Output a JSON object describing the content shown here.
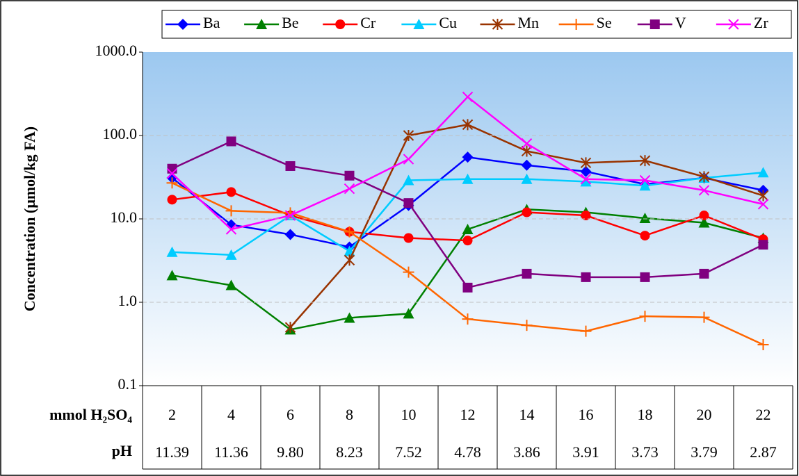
{
  "chart_data": {
    "type": "line",
    "y_label": "Concentration (μmol/kg FA)",
    "x_label": "mmol H₂SO₄",
    "row2_label": "pH",
    "row2": [
      "11.39",
      "11.36",
      "9.80",
      "8.23",
      "7.52",
      "4.78",
      "3.86",
      "3.91",
      "3.73",
      "3.79",
      "2.87"
    ],
    "categories": [
      "2",
      "4",
      "6",
      "8",
      "10",
      "12",
      "14",
      "16",
      "18",
      "20",
      "22"
    ],
    "log_scale": true,
    "grid": true,
    "ylim": [
      0.1,
      1000
    ],
    "yticks": [
      {
        "value": 1000,
        "label": "1000.0"
      },
      {
        "value": 100,
        "label": "100.0"
      },
      {
        "value": 10,
        "label": "10.0"
      },
      {
        "value": 1,
        "label": "1.0"
      },
      0.1
    ],
    "legend": "top",
    "series": [
      {
        "name": "Ba",
        "color": "#0000ff",
        "marker": "diamond",
        "values": [
          31,
          8.5,
          6.5,
          4.6,
          14.5,
          55,
          44,
          37,
          26,
          31,
          22
        ]
      },
      {
        "name": "Be",
        "color": "#008000",
        "marker": "triangle",
        "values": [
          2.1,
          1.6,
          0.47,
          0.65,
          0.73,
          7.5,
          13,
          12,
          10.2,
          9,
          5.9
        ]
      },
      {
        "name": "Cr",
        "color": "#ff0000",
        "marker": "circle",
        "values": [
          17,
          21,
          11,
          7,
          5.9,
          5.5,
          12,
          11,
          6.3,
          11,
          5.7
        ]
      },
      {
        "name": "Cu",
        "color": "#00ccff",
        "marker": "triangle",
        "values": [
          4,
          3.7,
          11,
          4.1,
          29,
          30,
          30,
          28,
          25,
          31,
          36
        ]
      },
      {
        "name": "Mn",
        "color": "#993300",
        "marker": "star",
        "values": [
          null,
          null,
          0.5,
          3.2,
          100,
          135,
          65,
          47,
          50,
          32,
          19
        ]
      },
      {
        "name": "Se",
        "color": "#ff6600",
        "marker": "plus",
        "values": [
          27,
          12.5,
          11.8,
          7,
          2.3,
          0.63,
          0.53,
          0.45,
          0.68,
          0.66,
          0.31
        ]
      },
      {
        "name": "V",
        "color": "#800080",
        "marker": "square",
        "values": [
          40,
          85,
          43,
          33,
          15.5,
          1.5,
          2.2,
          2.0,
          2.0,
          2.2,
          4.9
        ]
      },
      {
        "name": "Zr",
        "color": "#ff00ff",
        "marker": "x",
        "values": [
          35,
          7.5,
          11,
          23,
          52,
          290,
          80,
          30,
          29,
          22,
          15
        ]
      }
    ]
  }
}
